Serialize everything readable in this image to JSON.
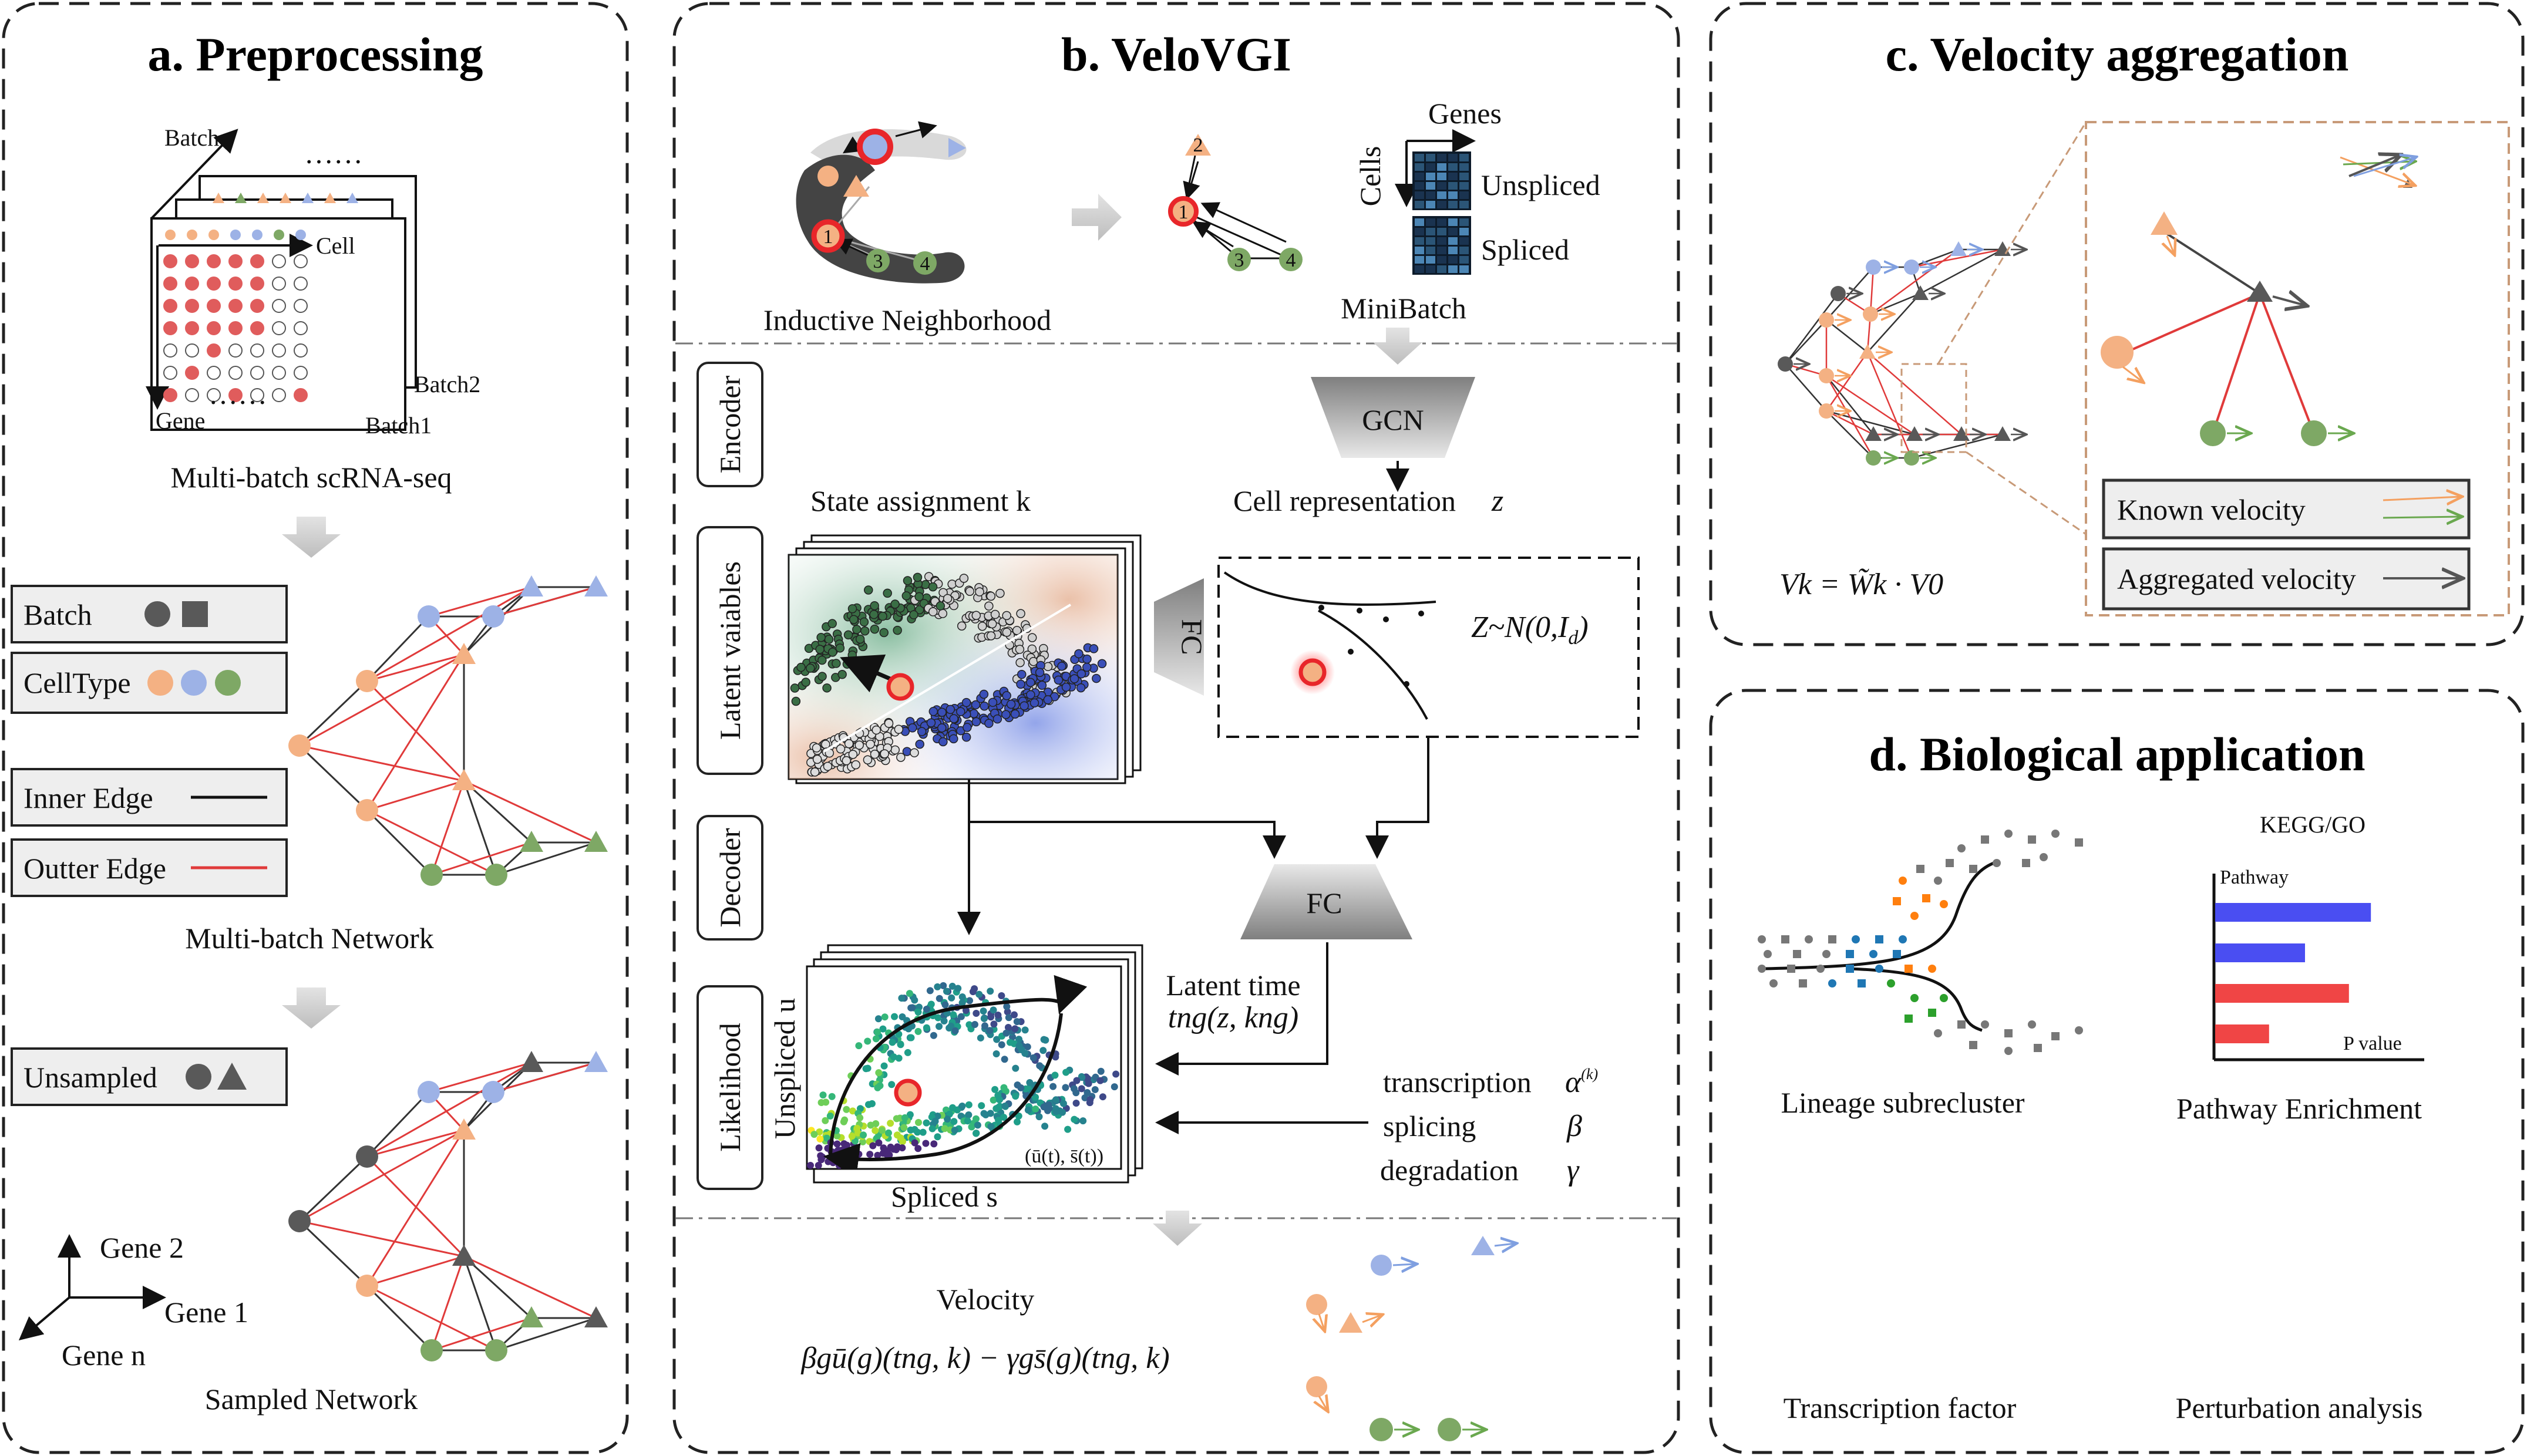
{
  "panels": {
    "a": {
      "title": "a. Preprocessing",
      "batch_axis": "Batch",
      "cell_axis": "Cell",
      "gene_axis": "Gene",
      "batch2": "Batch2",
      "batch1": "Batch1",
      "dots_top": "……",
      "dots_bottom": "……",
      "caption_scrna": "Multi-batch scRNA-seq",
      "legend_batch": "Batch",
      "legend_celltype": "CellType",
      "legend_inner": "Inner Edge",
      "legend_outer": "Outter Edge",
      "caption_network": "Multi-batch Network",
      "legend_unsampled": "Unsampled",
      "axis_gene2": "Gene 2",
      "axis_gene1": "Gene 1",
      "axis_genen": "Gene n",
      "caption_sampled": "Sampled Network"
    },
    "b": {
      "title": "b. VeloVGI",
      "inductive": "Inductive Neighborhood",
      "minibatch": "MiniBatch",
      "genes": "Genes",
      "cells": "Cells",
      "unspliced": "Unspliced",
      "spliced": "Spliced",
      "encoder": "Encoder",
      "latent_variables": "Latent vaiables",
      "decoder": "Decoder",
      "likelihood": "Likelihood",
      "gcn": "GCN",
      "cell_rep": "Cell representation",
      "cell_rep_var": "z",
      "state_assign": "State assignment k",
      "fc1": "FC",
      "fc2": "FC",
      "prior": "Z~N(0,I",
      "prior_sub": "d",
      "prior_close": ")",
      "latent_time": "Latent time",
      "latent_time_expr": "tng(z, kng)",
      "transcription": "transcription",
      "splicing": "splicing",
      "degradation": "degradation",
      "alpha": "α",
      "alpha_sup": "(k)",
      "beta": "β",
      "gamma": "γ",
      "unspliced_u": "Unspliced u",
      "spliced_s": "Spliced s",
      "traj_label": "(ū(t), s̄(t))",
      "velocity": "Velocity",
      "velocity_expr": "βgū(g)(tng, k) − γgs̄(g)(tng, k)"
    },
    "c": {
      "title": "c. Velocity aggregation",
      "formula": "Vk = W̃k · V0",
      "known": "Known velocity",
      "aggregated": "Aggregated velocity"
    },
    "d": {
      "title": "d. Biological application",
      "kegg": "KEGG/GO",
      "pathway": "Pathway",
      "pvalue": "P value",
      "lineage": "Lineage subrecluster",
      "enrichment": "Pathway Enrichment",
      "tf": "Transcription factor",
      "perturbation": "Perturbation analysis"
    }
  },
  "colors": {
    "orange": "#f4b183",
    "blue": "#9db2e6",
    "green": "#7ea865",
    "gray": "#595959",
    "red_edge": "#e03a3a",
    "bar_blue": "#4a4ef2",
    "bar_red": "#f04545"
  },
  "enrichment_bars": [
    {
      "color": "blue",
      "value": 0.78
    },
    {
      "color": "blue",
      "value": 0.45
    },
    {
      "color": "red",
      "value": 0.67
    },
    {
      "color": "red",
      "value": 0.27
    }
  ]
}
